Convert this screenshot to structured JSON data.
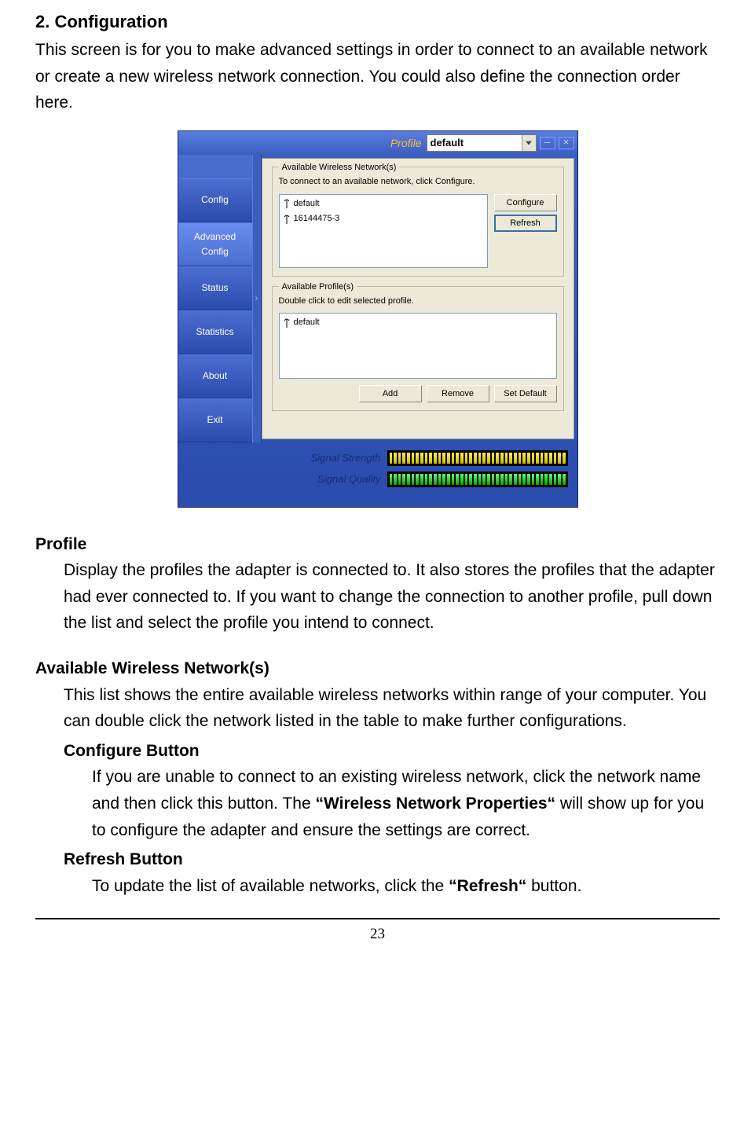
{
  "doc": {
    "heading": "2. Configuration",
    "intro": "This screen is for you to make advanced settings in order to connect to an available network or create a new wireless network connection. You could also define the connection order here.",
    "profile_h": "Profile",
    "profile_p": "Display the profiles the adapter is connected to. It also stores the profiles that the adapter had ever connected to. If you want to change the connection to another profile, pull down the list and select the profile you intend to connect.",
    "avail_h": "Available Wireless Network(s)",
    "avail_p": "This list shows the entire available wireless networks within range of your computer. You can double click the network listed in the table to make further configurations.",
    "conf_btn_h": "Configure Button",
    "conf_btn_p1": "If you are unable to connect to an existing wireless network, click the network name and then click this button. The ",
    "conf_btn_bold": "“Wireless Network Properties“",
    "conf_btn_p2": " will show up for you to configure the adapter and ensure the settings are correct.",
    "refresh_btn_h": "Refresh Button",
    "refresh_btn_p1": "To update the list of available networks, click the ",
    "refresh_btn_bold": "“Refresh“",
    "refresh_btn_p2": " button.",
    "page_num": "23"
  },
  "app": {
    "titlebar": {
      "title": "Profile",
      "selected_profile": "default"
    },
    "sidebar": {
      "tabs": [
        {
          "label": "Config"
        },
        {
          "label": "Advanced\nConfig"
        },
        {
          "label": "Status"
        },
        {
          "label": "Statistics"
        },
        {
          "label": "About"
        },
        {
          "label": "Exit"
        }
      ],
      "active_index": 1
    },
    "networks": {
      "group_title": "Available Wireless Network(s)",
      "hint": "To connect to an available network, click Configure.",
      "items": [
        {
          "name": "default"
        },
        {
          "name": "16144475-3"
        }
      ],
      "configure_btn": "Configure",
      "refresh_btn": "Refresh"
    },
    "profiles": {
      "group_title": "Available Profile(s)",
      "hint": "Double click to edit selected profile.",
      "items": [
        {
          "name": "default"
        }
      ],
      "add_btn": "Add",
      "remove_btn": "Remove",
      "setdefault_btn": "Set Default"
    },
    "signals": {
      "strength_label": "Signal Strength",
      "quality_label": "Signal Quality",
      "strength_segments": 40,
      "strength_filled": 40,
      "quality_segments": 40,
      "quality_filled": 40,
      "strength_color": "#ffee33",
      "quality_color": "#33dd33"
    },
    "colors": {
      "panel_bg": "#ece9d8",
      "window_bg_top": "#5a7de0",
      "window_bg_bottom": "#2a4dad",
      "title_accent": "#ffbb33",
      "signal_label": "#152c78"
    }
  }
}
